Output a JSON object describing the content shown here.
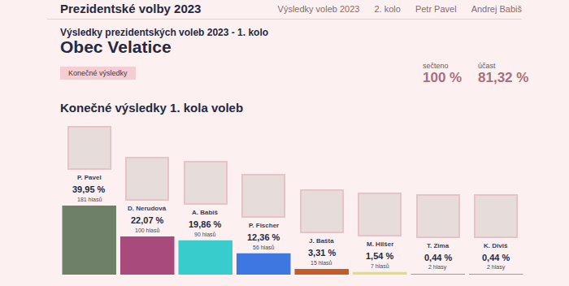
{
  "page": {
    "header": "Prezidentské volby 2023",
    "nav": [
      "Výsledky voleb 2023",
      "2. kolo",
      "Petr Pavel",
      "Andrej Babiš"
    ],
    "subtitle": "Výsledky prezidentských voleb 2023 - 1. kolo",
    "heading": "Obec Velatice",
    "badge": "Konečné výsledky",
    "stats": [
      {
        "label": "sečteno",
        "value": "100 %"
      },
      {
        "label": "účast",
        "value": "81,32 %"
      }
    ]
  },
  "chart_data": {
    "type": "bar",
    "title": "Konečné výsledky 1. kola voleb",
    "categories": [
      "P. Pavel",
      "D. Nerudová",
      "A. Babiš",
      "P. Fischer",
      "J. Bašta",
      "M. Hilšer",
      "T. Zima",
      "K. Diviš"
    ],
    "values": [
      39.95,
      22.07,
      19.86,
      12.36,
      3.31,
      1.54,
      0.44,
      0.44
    ],
    "value_labels": [
      "39,95 %",
      "22,07 %",
      "19,86 %",
      "12,36 %",
      "3,31 %",
      "1,54 %",
      "0,44 %",
      "0,44 %"
    ],
    "vote_labels": [
      "181 hlasů",
      "100 hlasů",
      "90 hlasů",
      "56 hlasů",
      "15 hlasů",
      "7 hlasů",
      "2 hlasy",
      "2 hlasy"
    ],
    "colors": [
      "#6e8068",
      "#a84a7c",
      "#38cccc",
      "#3f77e0",
      "#c25d2a",
      "#e3dc7e",
      "#8aa2b8",
      "#3ed67a"
    ],
    "ylim": [
      0,
      39.95
    ],
    "grid": false,
    "tick_labels": false,
    "data_labels": true
  }
}
